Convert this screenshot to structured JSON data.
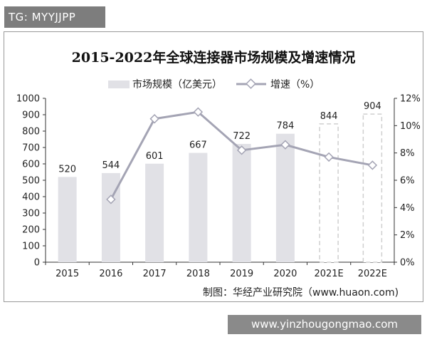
{
  "header_tag": "TG: MYYJJPP",
  "watermark": "www.yinzhougongmao.com",
  "chart_data": {
    "type": "bar",
    "title": "2015-2022年全球连接器市场规模及增速情况",
    "categories": [
      "2015",
      "2016",
      "2017",
      "2018",
      "2019",
      "2020",
      "2021E",
      "2022E"
    ],
    "series": [
      {
        "name": "市场规模（亿美元）",
        "type": "bar",
        "values": [
          520,
          544,
          601,
          667,
          722,
          784,
          844,
          904
        ],
        "labels": [
          "520",
          "544",
          "601",
          "667",
          "722",
          "784",
          "844",
          "904"
        ],
        "estimated": [
          false,
          false,
          false,
          false,
          false,
          false,
          true,
          true
        ]
      },
      {
        "name": "增速（%）",
        "type": "line",
        "axis": "right",
        "values": [
          null,
          4.6,
          10.5,
          11.0,
          8.2,
          8.6,
          7.7,
          7.1
        ]
      }
    ],
    "y_left": {
      "min": 0,
      "max": 1000,
      "ticks": [
        "0",
        "100",
        "200",
        "300",
        "400",
        "500",
        "600",
        "700",
        "800",
        "900",
        "1000"
      ]
    },
    "y_right": {
      "min": 0,
      "max": 12,
      "ticks": [
        "0%",
        "2%",
        "4%",
        "6%",
        "8%",
        "10%",
        "12%"
      ]
    },
    "grid": false,
    "legend": "top",
    "colors": {
      "bar": "#e1e1e6",
      "bar_estimated_border": "#cfcfcf",
      "line": "#a4a4b4",
      "marker_fill": "#ffffff"
    }
  },
  "source_note": "制图：华经产业研究院（www.huaon.com)"
}
